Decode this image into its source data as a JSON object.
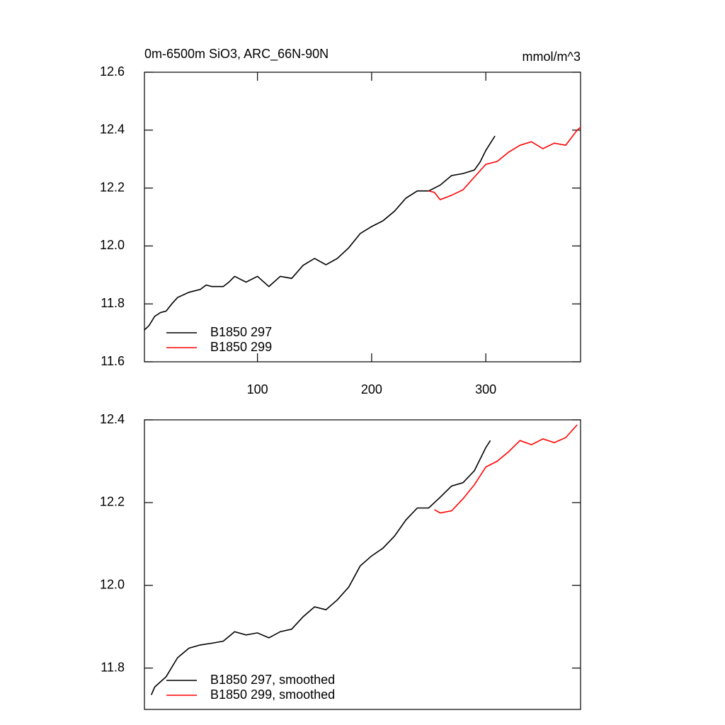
{
  "chart_data": [
    {
      "type": "line",
      "title": "0m-6500m SiO3, ARC_66N-90N",
      "units": "mmol/m^3",
      "xlim": [
        1,
        383
      ],
      "xticks": [
        100,
        200,
        300
      ],
      "ylim": [
        11.6,
        12.6
      ],
      "yticks": [
        11.6,
        11.8,
        {
          "value": 12.0,
          "label": "12.0"
        },
        12.2,
        12.4,
        12.6
      ],
      "legend": "lower left",
      "series": [
        {
          "name": "B1850 297",
          "color": "#000000",
          "x": [
            1,
            5,
            10,
            15,
            20,
            25,
            30,
            40,
            50,
            55,
            60,
            70,
            75,
            80,
            90,
            100,
            110,
            120,
            130,
            140,
            150,
            160,
            170,
            180,
            190,
            200,
            210,
            220,
            230,
            240,
            250,
            260,
            270,
            280,
            290,
            295,
            300,
            308
          ],
          "values": [
            11.71,
            11.725,
            11.757,
            11.77,
            11.775,
            11.8,
            11.822,
            11.84,
            11.85,
            11.865,
            11.86,
            11.86,
            11.875,
            11.895,
            11.875,
            11.895,
            11.86,
            11.895,
            11.888,
            11.933,
            11.957,
            11.935,
            11.957,
            11.994,
            12.043,
            12.067,
            12.087,
            12.12,
            12.165,
            12.19,
            12.19,
            12.21,
            12.243,
            12.25,
            12.262,
            12.29,
            12.33,
            12.38
          ]
        },
        {
          "name": "B1850 299",
          "color": "#ff0000",
          "x": [
            250,
            255,
            260,
            270,
            280,
            290,
            300,
            310,
            320,
            330,
            340,
            350,
            360,
            370,
            380,
            383
          ],
          "values": [
            12.19,
            12.185,
            12.16,
            12.175,
            12.194,
            12.238,
            12.282,
            12.292,
            12.324,
            12.348,
            12.36,
            12.336,
            12.355,
            12.348,
            12.4,
            12.41
          ]
        }
      ]
    },
    {
      "type": "line",
      "xlim": [
        1,
        383
      ],
      "ylim": [
        11.7,
        12.4
      ],
      "yticks": [
        11.8,
        {
          "value": 12.0,
          "label": "12.0"
        },
        12.2,
        12.4
      ],
      "legend": "lower left",
      "series": [
        {
          "name": "B1850 297, smoothed",
          "color": "#000000",
          "x": [
            7,
            10,
            20,
            30,
            40,
            50,
            60,
            70,
            80,
            90,
            100,
            110,
            120,
            130,
            140,
            150,
            160,
            170,
            180,
            190,
            200,
            210,
            220,
            230,
            240,
            250,
            260,
            270,
            280,
            290,
            300,
            304
          ],
          "values": [
            11.735,
            11.754,
            11.779,
            11.825,
            11.848,
            11.856,
            11.86,
            11.865,
            11.888,
            11.88,
            11.885,
            11.873,
            11.888,
            11.894,
            11.924,
            11.948,
            11.941,
            11.965,
            11.996,
            12.047,
            12.071,
            12.09,
            12.119,
            12.158,
            12.187,
            12.187,
            12.213,
            12.24,
            12.248,
            12.277,
            12.333,
            12.35
          ]
        },
        {
          "name": "B1850 299, smoothed",
          "color": "#ff0000",
          "x": [
            255,
            260,
            270,
            280,
            290,
            300,
            310,
            320,
            330,
            340,
            350,
            360,
            370,
            380
          ],
          "values": [
            12.183,
            12.175,
            12.18,
            12.209,
            12.243,
            12.286,
            12.3,
            12.323,
            12.35,
            12.34,
            12.354,
            12.345,
            12.357,
            12.388
          ]
        }
      ]
    }
  ]
}
